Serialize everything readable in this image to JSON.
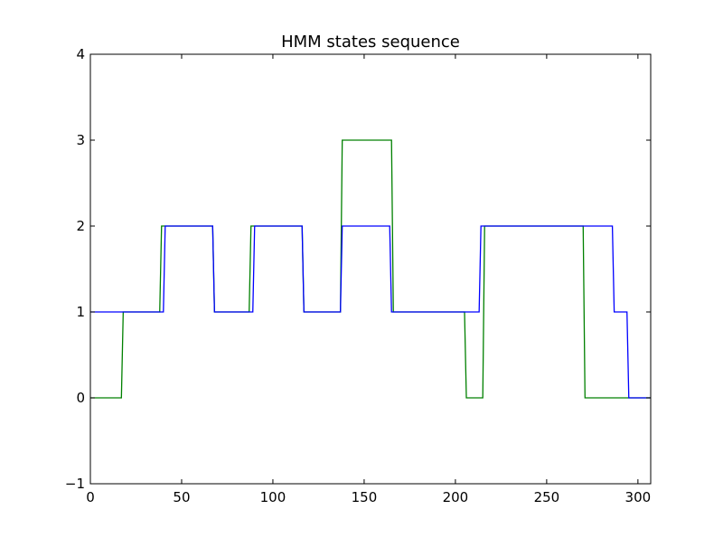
{
  "chart_data": {
    "type": "line",
    "title": "HMM states sequence",
    "xlabel": "",
    "ylabel": "",
    "xlim": [
      0,
      307
    ],
    "ylim": [
      -1,
      4
    ],
    "xticks": [
      0,
      50,
      100,
      150,
      200,
      250,
      300
    ],
    "yticks": [
      -1,
      0,
      1,
      2,
      3,
      4
    ],
    "xtick_labels": [
      "0",
      "50",
      "100",
      "150",
      "200",
      "250",
      "300"
    ],
    "ytick_labels": [
      "−1",
      "0",
      "1",
      "2",
      "3",
      "4"
    ],
    "grid": false,
    "series": [
      {
        "color": "#008000",
        "x": [
          0,
          17,
          18,
          38,
          39,
          67,
          68,
          87,
          88,
          116,
          117,
          137,
          138,
          165,
          166,
          205,
          206,
          215,
          216,
          270,
          271,
          307
        ],
        "y": [
          0,
          0,
          1,
          1,
          2,
          2,
          1,
          1,
          2,
          2,
          1,
          1,
          3,
          3,
          1,
          1,
          0,
          0,
          2,
          2,
          0,
          0
        ]
      },
      {
        "color": "#0000ff",
        "x": [
          0,
          40,
          41,
          67,
          68,
          89,
          90,
          116,
          117,
          137,
          138,
          164,
          165,
          213,
          214,
          286,
          287,
          294,
          295,
          307
        ],
        "y": [
          1,
          1,
          2,
          2,
          1,
          1,
          2,
          2,
          1,
          1,
          2,
          2,
          1,
          1,
          2,
          2,
          1,
          1,
          0,
          0
        ]
      }
    ]
  }
}
